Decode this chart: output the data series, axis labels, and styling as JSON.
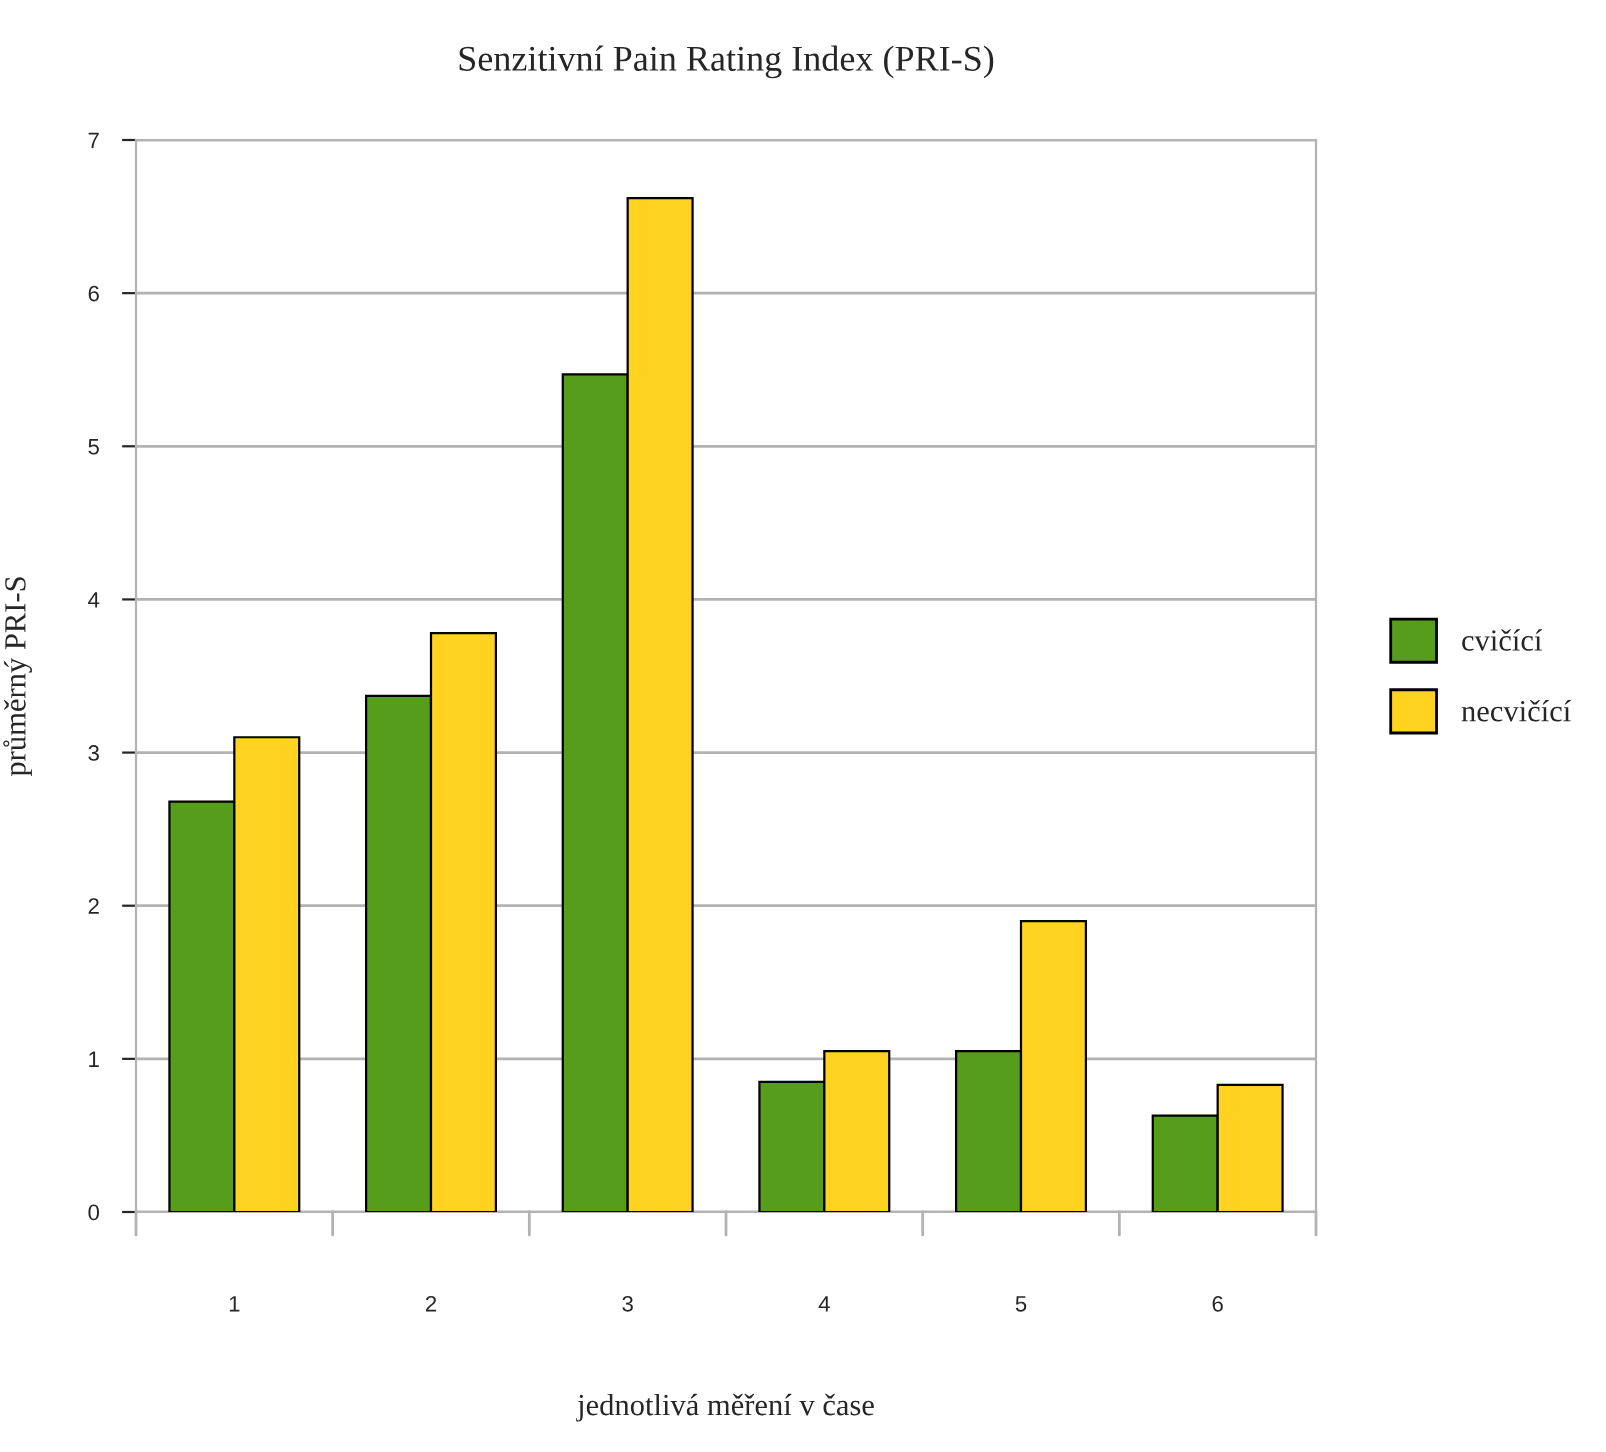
{
  "chart_data": {
    "type": "bar",
    "title": "Senzitivní Pain Rating Index (PRI-S)",
    "xlabel": "jednotlivá měření v čase",
    "ylabel": "průměrný PRI-S",
    "categories": [
      "1",
      "2",
      "3",
      "4",
      "5",
      "6"
    ],
    "series": [
      {
        "name": "cvičící",
        "color": "#579d1c",
        "values": [
          2.68,
          3.37,
          5.47,
          0.85,
          1.05,
          0.63
        ]
      },
      {
        "name": "necvičící",
        "color": "#ffd320",
        "values": [
          3.1,
          3.78,
          6.62,
          1.05,
          1.9,
          0.83
        ]
      }
    ],
    "ylim": [
      0,
      7
    ],
    "yticks": [
      0,
      1,
      2,
      3,
      4,
      5,
      6,
      7
    ],
    "grid": "y",
    "legend": "right"
  }
}
